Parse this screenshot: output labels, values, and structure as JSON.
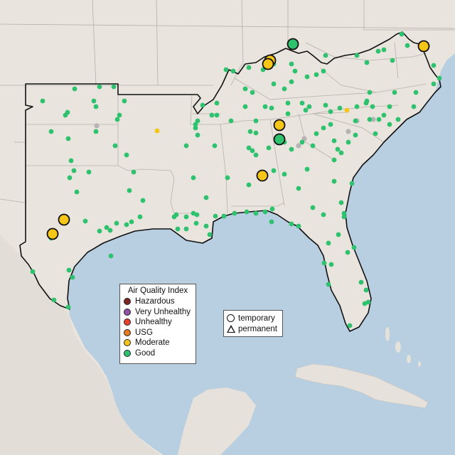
{
  "legend": {
    "title": "Air Quality Index",
    "items": [
      {
        "label": "Hazardous",
        "color": "#7e2520"
      },
      {
        "label": "Very Unhealthy",
        "color": "#8f52a8"
      },
      {
        "label": "Unhealthy",
        "color": "#e8412d"
      },
      {
        "label": "USG",
        "color": "#e8791e"
      },
      {
        "label": "Moderate",
        "color": "#f5c518"
      },
      {
        "label": "Good",
        "color": "#2ec26e"
      }
    ]
  },
  "shape_legend": {
    "items": [
      {
        "label": "temporary",
        "shape": "circle-icon"
      },
      {
        "label": "permanent",
        "shape": "triangle-icon"
      }
    ]
  },
  "colors": {
    "ocean": "#b7cfe1",
    "land": "#ebe6e1",
    "land_outside": "#e4dfd9",
    "border": "#111111",
    "good": "#2ec26e",
    "moderate": "#f5c518",
    "unhealthy_sg": "#e8791e",
    "no_data": "#b4b4b4"
  }
}
